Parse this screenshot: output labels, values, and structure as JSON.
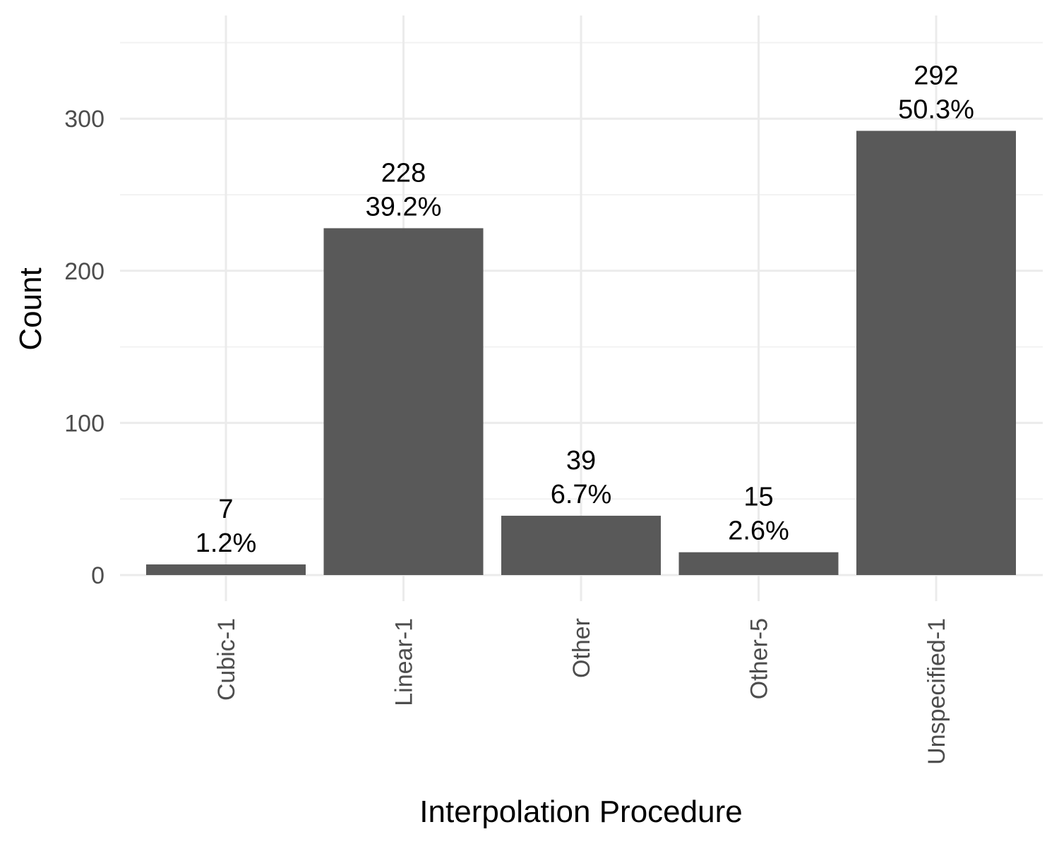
{
  "chart_data": {
    "type": "bar",
    "xlabel": "Interpolation Procedure",
    "ylabel": "Count",
    "categories": [
      "Cubic-1",
      "Linear-1",
      "Other",
      "Other-5",
      "Unspecified-1"
    ],
    "values": [
      7,
      228,
      39,
      15,
      292
    ],
    "percent_labels": [
      "1.2%",
      "39.2%",
      "6.7%",
      "2.6%",
      "50.3%"
    ],
    "ylim": [
      0,
      350
    ],
    "yticks": [
      0,
      100,
      200,
      300
    ],
    "grid": true,
    "legend": "none",
    "bar_color": "#595959",
    "grid_color": "#ebebeb"
  }
}
